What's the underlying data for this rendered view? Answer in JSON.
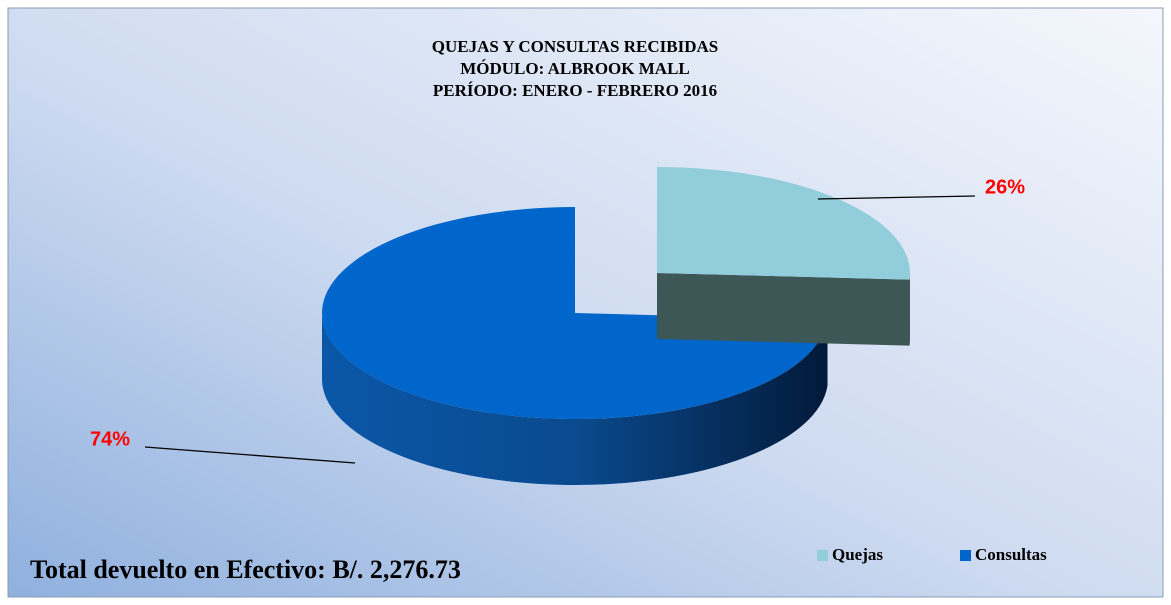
{
  "chart_data": {
    "type": "pie",
    "title": [
      "QUEJAS Y CONSULTAS RECIBIDAS",
      "MÓDULO: ALBROOK MALL",
      "PERÍODO: ENERO - FEBRERO 2016"
    ],
    "categories": [
      "Quejas",
      "Consultas"
    ],
    "values": [
      26,
      74
    ],
    "value_labels": [
      "26%",
      "74%"
    ],
    "colors": [
      "#92cddc",
      "#0066cc"
    ],
    "legend": "bottom-right",
    "annotation": "Total devuelto en Efectivo: B/. 2,276.73"
  }
}
